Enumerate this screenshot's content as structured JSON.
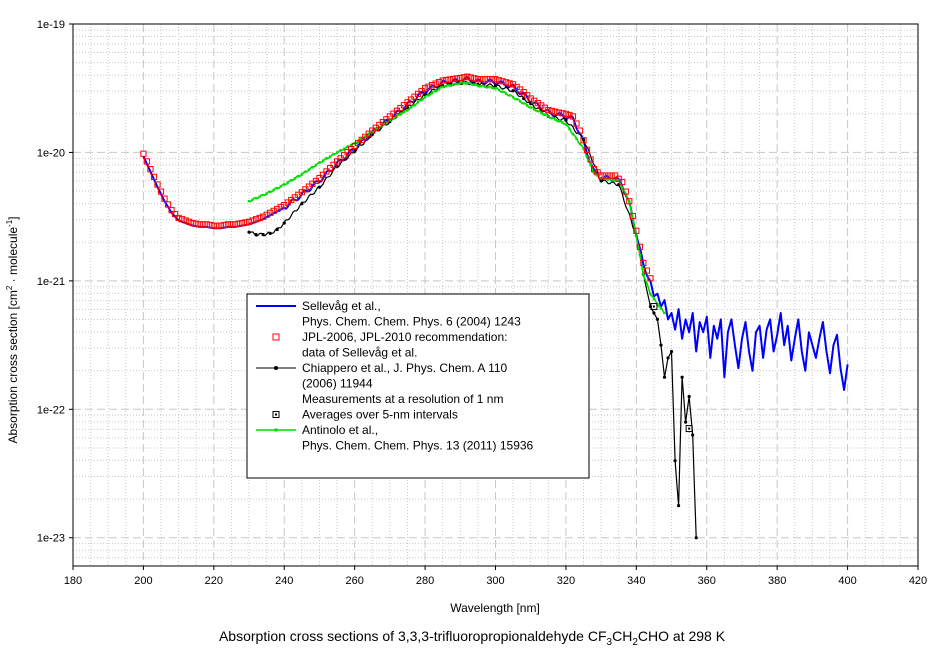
{
  "chart_data": {
    "type": "line",
    "title": "Absorption cross sections of 3,3,3-trifluoropropionaldehyde CF3CH2CHO at 298 K",
    "caption": {
      "prefix": "Absorption cross sections of 3,3,3-trifluoropropionaldehyde CF",
      "sub1": "3",
      "mid1": "CH",
      "sub2": "2",
      "suffix": "CHO at 298 K"
    },
    "xlabel": "Wavelength [nm]",
    "ylabel": {
      "prefix": "Absorption cross section [cm",
      "sup1": "2",
      "middle": " · molecule",
      "sup2": "-1",
      "suffix": "]"
    },
    "yscale": "log",
    "xlim": [
      180,
      420
    ],
    "ylim_exp": [
      -23.22,
      -19
    ],
    "xticks": [
      180,
      200,
      220,
      240,
      260,
      280,
      300,
      320,
      340,
      360,
      380,
      400,
      420
    ],
    "yticks": [
      {
        "exp": -19,
        "label": "1e-19"
      },
      {
        "exp": -20,
        "label": "1e-20"
      },
      {
        "exp": -21,
        "label": "1e-21"
      },
      {
        "exp": -22,
        "label": "1e-22"
      },
      {
        "exp": -23,
        "label": "1e-23"
      }
    ],
    "grid": true,
    "legend_position": "center-left",
    "legend": [
      {
        "series": "sellevag",
        "lines": [
          "Sellevåg et al.,",
          "Phys. Chem. Chem. Phys. 6 (2004) 1243"
        ]
      },
      {
        "series": "jpl",
        "lines": [
          "JPL-2006, JPL-2010 recommendation:",
          "data of Sellevåg et al."
        ]
      },
      {
        "series": "chiappero",
        "lines": [
          "Chiappero et al., J. Phys. Chem. A 110",
          "(2006) 11944",
          "Measurements at a resolution of 1 nm"
        ]
      },
      {
        "series": "chiappero_avg",
        "lines": [
          "Averages over 5-nm intervals"
        ]
      },
      {
        "series": "antinolo",
        "lines": [
          "Antinolo et al.,",
          "Phys. Chem. Chem. Phys. 13 (2011) 15936"
        ]
      }
    ],
    "colors": {
      "sellevag": "#0000ff",
      "jpl": "#ff0000",
      "chiappero": "#000000",
      "chiappero_avg": "#000000",
      "antinolo": "#00dd00",
      "grid": "#c8c8c8"
    },
    "base_curve_log10": {
      "x": [
        200,
        202,
        204,
        206,
        208,
        210,
        212,
        214,
        216,
        218,
        220,
        222,
        224,
        226,
        228,
        230,
        232,
        234,
        236,
        238,
        240,
        245,
        250,
        255,
        260,
        265,
        270,
        275,
        280,
        285,
        290,
        292,
        295,
        300,
        305,
        308,
        310,
        315,
        318,
        320,
        322,
        324,
        326,
        328,
        330,
        332,
        334,
        336,
        338,
        340,
        342,
        344
      ],
      "y": [
        -20.03,
        -20.15,
        -20.27,
        -20.38,
        -20.47,
        -20.53,
        -20.55,
        -20.57,
        -20.58,
        -20.58,
        -20.59,
        -20.59,
        -20.58,
        -20.58,
        -20.57,
        -20.56,
        -20.54,
        -20.52,
        -20.49,
        -20.46,
        -20.43,
        -20.33,
        -20.22,
        -20.09,
        -19.97,
        -19.85,
        -19.74,
        -19.63,
        -19.52,
        -19.46,
        -19.44,
        -19.43,
        -19.45,
        -19.45,
        -19.49,
        -19.55,
        -19.6,
        -19.69,
        -19.71,
        -19.72,
        -19.74,
        -19.85,
        -20.0,
        -20.15,
        -20.2,
        -20.2,
        -20.2,
        -20.25,
        -20.4,
        -20.63,
        -20.88,
        -21.0
      ]
    },
    "sellevag_tail_log10": {
      "x": [
        344,
        345,
        346,
        347,
        348,
        349,
        350,
        351,
        352,
        353,
        354,
        355,
        356,
        357,
        358,
        359,
        360,
        361,
        362,
        363,
        364,
        365,
        366,
        367,
        368,
        369,
        370,
        371,
        372,
        373,
        374,
        375,
        376,
        377,
        378,
        379,
        380,
        381,
        382,
        383,
        384,
        385,
        386,
        387,
        388,
        389,
        390,
        391,
        392,
        393,
        394,
        395,
        396,
        397,
        398,
        399,
        400
      ],
      "y": [
        -21.05,
        -21.12,
        -21.1,
        -21.2,
        -21.15,
        -21.3,
        -21.25,
        -21.38,
        -21.22,
        -21.45,
        -21.3,
        -21.4,
        -21.25,
        -21.55,
        -21.32,
        -21.4,
        -21.28,
        -21.6,
        -21.35,
        -21.45,
        -21.3,
        -21.75,
        -21.4,
        -21.3,
        -21.5,
        -21.68,
        -21.45,
        -21.32,
        -21.55,
        -21.7,
        -21.4,
        -21.35,
        -21.6,
        -21.38,
        -21.3,
        -21.55,
        -21.42,
        -21.25,
        -21.5,
        -21.35,
        -21.62,
        -21.45,
        -21.3,
        -21.55,
        -21.7,
        -21.4,
        -21.5,
        -21.6,
        -21.45,
        -21.32,
        -21.55,
        -21.72,
        -21.5,
        -21.42,
        -21.68,
        -21.85,
        -21.65
      ]
    },
    "jpl_range": [
      200,
      344
    ],
    "chiappero": {
      "x": [
        230,
        232,
        234,
        236,
        238,
        240,
        245,
        250,
        255,
        260,
        265,
        270,
        275,
        280,
        285,
        290,
        292,
        295,
        300,
        305,
        308,
        310,
        315,
        320,
        325,
        330,
        335,
        340,
        342,
        344,
        345,
        346,
        347,
        348,
        349,
        350,
        351,
        352,
        353,
        354,
        355,
        356,
        357
      ],
      "y": [
        -20.62,
        -20.64,
        -20.64,
        -20.63,
        -20.6,
        -20.55,
        -20.4,
        -20.27,
        -20.11,
        -19.99,
        -19.86,
        -19.76,
        -19.65,
        -19.55,
        -19.48,
        -19.46,
        -19.46,
        -19.47,
        -19.48,
        -19.52,
        -19.58,
        -19.62,
        -19.72,
        -19.75,
        -19.9,
        -20.22,
        -20.25,
        -20.65,
        -20.95,
        -21.2,
        -21.25,
        -21.3,
        -21.5,
        -21.75,
        -21.6,
        -21.55,
        -22.4,
        -22.75,
        -21.75,
        -22.1,
        -21.9,
        -22.2,
        -23.0
      ]
    },
    "chiappero_avg": {
      "x": [
        345,
        355
      ],
      "y": [
        -21.2,
        -22.15
      ]
    },
    "antinolo": {
      "x": [
        230,
        235,
        240,
        245,
        250,
        255,
        260,
        265,
        270,
        275,
        280,
        285,
        290,
        292,
        295,
        300,
        305,
        310,
        315,
        320,
        325,
        328,
        330,
        335,
        338,
        340,
        342,
        344,
        346,
        348
      ],
      "y": [
        -20.38,
        -20.32,
        -20.25,
        -20.17,
        -20.08,
        -20.0,
        -19.93,
        -19.84,
        -19.75,
        -19.67,
        -19.57,
        -19.49,
        -19.46,
        -19.46,
        -19.48,
        -19.5,
        -19.57,
        -19.65,
        -19.72,
        -19.78,
        -19.97,
        -20.16,
        -20.2,
        -20.22,
        -20.38,
        -20.65,
        -20.95,
        -21.1,
        -21.18,
        -21.25
      ]
    }
  }
}
